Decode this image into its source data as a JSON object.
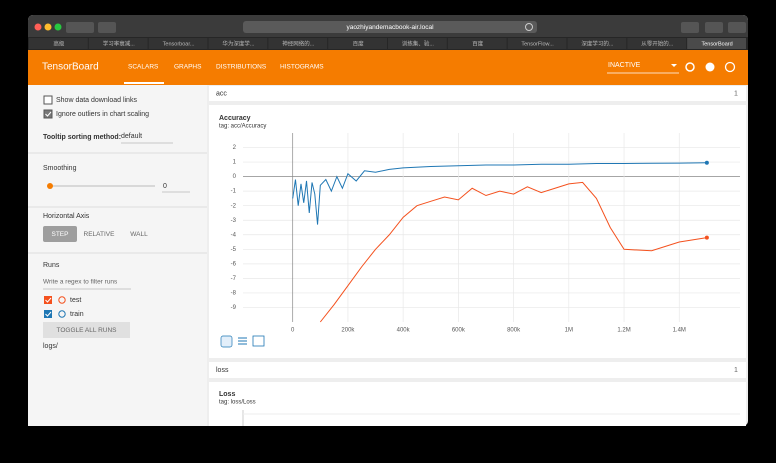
{
  "browser": {
    "address": "yaozhiyandemacbook-air.local",
    "tabs": [
      "高级",
      "学习率衰减...",
      "Tensorboar...",
      "华为深度学...",
      "神经网络的...",
      "百度",
      "训练集、验...",
      "百度",
      "TensorFlow...",
      "深度学习的...",
      "从零开始的...",
      "TensorBoard"
    ]
  },
  "header": {
    "title": "TensorBoard",
    "nav": [
      "SCALARS",
      "GRAPHS",
      "DISTRIBUTIONS",
      "HISTOGRAMS"
    ],
    "status": "INACTIVE"
  },
  "sidebar": {
    "show_download": "Show data download links",
    "ignore_outliers": "Ignore outliers in chart scaling",
    "tooltip_label": "Tooltip sorting method:",
    "tooltip_value": "default",
    "smoothing_label": "Smoothing",
    "smoothing_value": "0",
    "axis_label": "Horizontal Axis",
    "axis_options": [
      "STEP",
      "RELATIVE",
      "WALL"
    ],
    "runs_label": "Runs",
    "runs_filter": "Write a regex to filter runs",
    "toggle": "TOGGLE ALL RUNS",
    "logdir": "logs/"
  },
  "sections": [
    {
      "name": "acc",
      "count": "1"
    },
    {
      "name": "loss",
      "count": "1",
      "card_title": "Loss",
      "card_tag": "tag: loss/Loss"
    }
  ],
  "chart_data": {
    "type": "line",
    "title": "Accuracy",
    "subtitle": "tag: acc/Accuracy",
    "xlim": [
      -180000,
      1620000
    ],
    "ylim": [
      -10,
      3
    ],
    "xticks": [
      0,
      {
        "value": 200000,
        "label": "200k"
      },
      {
        "value": 400000,
        "label": "400k"
      },
      {
        "value": 600000,
        "label": "600k"
      },
      {
        "value": 800000,
        "label": "800k"
      },
      {
        "value": 1000000,
        "label": "1M"
      },
      {
        "value": 1200000,
        "label": "1.2M"
      },
      {
        "value": 1400000,
        "label": "1.4M"
      }
    ],
    "yticks": [
      2,
      1,
      0,
      -1,
      -2,
      -3,
      -4,
      -5,
      -6,
      -7,
      -8,
      -9
    ],
    "grid": true,
    "series": [
      {
        "name": "test",
        "color": "#f4511e",
        "x": [
          100000,
          150000,
          200000,
          250000,
          300000,
          350000,
          400000,
          450000,
          500000,
          550000,
          600000,
          650000,
          700000,
          750000,
          800000,
          850000,
          900000,
          950000,
          1000000,
          1050000,
          1100000,
          1150000,
          1200000,
          1300000,
          1350000,
          1400000,
          1500000
        ],
        "values": [
          -10,
          -8.8,
          -7.5,
          -6.2,
          -5,
          -4,
          -2.8,
          -2,
          -1.7,
          -1.4,
          -1.6,
          -0.8,
          -1.3,
          -1.0,
          -1.2,
          -0.7,
          -1.1,
          -0.8,
          -0.5,
          -0.4,
          -1.5,
          -3.5,
          -5,
          -5.1,
          -4.8,
          -4.5,
          -4.2
        ]
      },
      {
        "name": "train",
        "color": "#1f77b4",
        "x": [
          0,
          10000,
          20000,
          30000,
          40000,
          50000,
          60000,
          70000,
          80000,
          90000,
          100000,
          120000,
          140000,
          160000,
          180000,
          200000,
          230000,
          260000,
          300000,
          350000,
          400000,
          500000,
          600000,
          700000,
          800000,
          900000,
          1000000,
          1100000,
          1200000,
          1300000,
          1400000,
          1500000
        ],
        "values": [
          -1.5,
          -0.2,
          -2,
          -0.5,
          -1.8,
          -0.3,
          -2.5,
          -0.4,
          -1.2,
          -3.3,
          -0.6,
          -0.2,
          -1.0,
          0.0,
          -0.8,
          0.2,
          -0.3,
          0.4,
          0.3,
          0.5,
          0.6,
          0.7,
          0.75,
          0.8,
          0.8,
          0.85,
          0.85,
          0.9,
          0.9,
          0.92,
          0.93,
          0.95
        ]
      }
    ]
  }
}
